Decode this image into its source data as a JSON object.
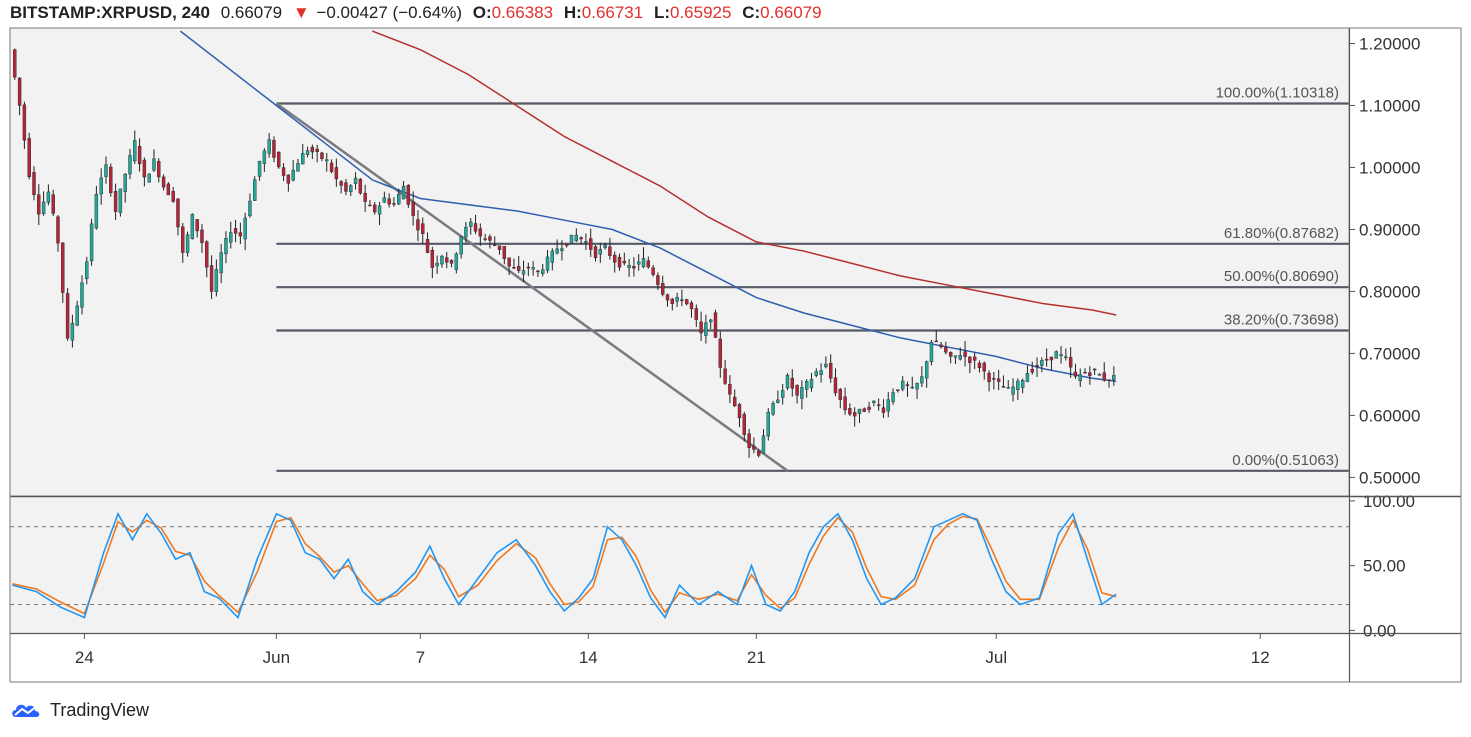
{
  "header": {
    "symbol": "BITSTAMP:XRPUSD, 240",
    "last": "0.66079",
    "down_arrow": "▼",
    "change": "−0.00427 (−0.64%)",
    "open_label": "O:",
    "open": "0.66383",
    "high_label": "H:",
    "high": "0.66731",
    "low_label": "L:",
    "low": "0.65925",
    "close_label": "C:",
    "close": "0.66079"
  },
  "brand": {
    "name": "TradingView",
    "logo_icon": "tradingview-cloud-icon"
  },
  "colors": {
    "up": "#26a69a",
    "down": "#b3263a",
    "ma_fast": "#2e5fb0",
    "ma_slow": "#b5302e",
    "fib": "#555a66",
    "stoch_k": "#2196f3",
    "stoch_d": "#f0781e",
    "grid_bg": "#f2f2f2"
  },
  "chart_data": [
    {
      "type": "candlestick",
      "price_axis": {
        "ylim": [
          0.47,
          1.225
        ],
        "ticks": [
          "1.20000",
          "1.10000",
          "1.00000",
          "0.90000",
          "0.80000",
          "0.70000",
          "0.60000",
          "0.50000"
        ]
      },
      "time_axis": {
        "ticks": [
          {
            "label": "24",
            "day": 24
          },
          {
            "label": "Jun",
            "day": 32
          },
          {
            "label": "7",
            "day": 38
          },
          {
            "label": "14",
            "day": 45
          },
          {
            "label": "21",
            "day": 52
          },
          {
            "label": "Jul",
            "day": 62
          },
          {
            "label": "12",
            "day": 73
          }
        ],
        "range_days": [
          20.9,
          76.7
        ]
      },
      "fib_levels": [
        {
          "label": "100.00%(1.10318)",
          "value": 1.10318
        },
        {
          "label": "61.80%(0.87682)",
          "value": 0.87682
        },
        {
          "label": "50.00%(0.80690)",
          "value": 0.8069
        },
        {
          "label": "38.20%(0.73698)",
          "value": 0.73698
        },
        {
          "label": "0.00%(0.51063)",
          "value": 0.51063
        }
      ],
      "fib_range_days": [
        32,
        76.7
      ],
      "trendline": {
        "from": [
          32,
          1.10318
        ],
        "to": [
          53.3,
          0.51063
        ]
      },
      "price_path": [
        [
          21.0,
          1.19
        ],
        [
          21.4,
          1.1
        ],
        [
          21.8,
          0.99
        ],
        [
          22.2,
          0.93
        ],
        [
          22.6,
          0.96
        ],
        [
          23.0,
          0.88
        ],
        [
          23.4,
          0.72
        ],
        [
          23.8,
          0.78
        ],
        [
          24.2,
          0.85
        ],
        [
          24.6,
          0.96
        ],
        [
          25.0,
          1.0
        ],
        [
          25.4,
          0.93
        ],
        [
          25.8,
          0.99
        ],
        [
          26.2,
          1.04
        ],
        [
          26.6,
          0.98
        ],
        [
          27.0,
          1.01
        ],
        [
          27.4,
          0.97
        ],
        [
          27.8,
          0.95
        ],
        [
          28.2,
          0.86
        ],
        [
          28.6,
          0.92
        ],
        [
          29.0,
          0.88
        ],
        [
          29.4,
          0.8
        ],
        [
          29.8,
          0.86
        ],
        [
          30.2,
          0.9
        ],
        [
          30.6,
          0.89
        ],
        [
          31.0,
          0.95
        ],
        [
          31.4,
          1.01
        ],
        [
          31.8,
          1.04
        ],
        [
          32.2,
          1.0
        ],
        [
          32.6,
          0.98
        ],
        [
          33.0,
          1.01
        ],
        [
          33.4,
          1.03
        ],
        [
          33.8,
          1.02
        ],
        [
          34.2,
          1.01
        ],
        [
          34.6,
          0.98
        ],
        [
          35.0,
          0.96
        ],
        [
          35.4,
          0.98
        ],
        [
          35.8,
          0.94
        ],
        [
          36.2,
          0.93
        ],
        [
          36.6,
          0.95
        ],
        [
          37.0,
          0.94
        ],
        [
          37.4,
          0.97
        ],
        [
          37.8,
          0.92
        ],
        [
          38.2,
          0.89
        ],
        [
          38.6,
          0.84
        ],
        [
          39.0,
          0.86
        ],
        [
          39.4,
          0.84
        ],
        [
          39.8,
          0.89
        ],
        [
          40.2,
          0.91
        ],
        [
          40.6,
          0.89
        ],
        [
          41.0,
          0.88
        ],
        [
          41.4,
          0.87
        ],
        [
          41.8,
          0.84
        ],
        [
          42.2,
          0.83
        ],
        [
          42.6,
          0.84
        ],
        [
          43.0,
          0.83
        ],
        [
          43.4,
          0.85
        ],
        [
          43.8,
          0.87
        ],
        [
          44.2,
          0.88
        ],
        [
          44.6,
          0.89
        ],
        [
          45.0,
          0.88
        ],
        [
          45.4,
          0.86
        ],
        [
          45.8,
          0.87
        ],
        [
          46.2,
          0.85
        ],
        [
          46.6,
          0.84
        ],
        [
          47.0,
          0.84
        ],
        [
          47.4,
          0.85
        ],
        [
          47.8,
          0.83
        ],
        [
          48.2,
          0.8
        ],
        [
          48.6,
          0.78
        ],
        [
          49.0,
          0.79
        ],
        [
          49.4,
          0.77
        ],
        [
          49.8,
          0.73
        ],
        [
          50.2,
          0.76
        ],
        [
          50.6,
          0.68
        ],
        [
          51.0,
          0.63
        ],
        [
          51.4,
          0.6
        ],
        [
          51.8,
          0.55
        ],
        [
          52.2,
          0.54
        ],
        [
          52.6,
          0.6
        ],
        [
          53.0,
          0.63
        ],
        [
          53.4,
          0.66
        ],
        [
          53.8,
          0.63
        ],
        [
          54.2,
          0.65
        ],
        [
          54.6,
          0.67
        ],
        [
          55.0,
          0.68
        ],
        [
          55.4,
          0.64
        ],
        [
          55.8,
          0.61
        ],
        [
          56.2,
          0.6
        ],
        [
          56.6,
          0.61
        ],
        [
          57.0,
          0.62
        ],
        [
          57.4,
          0.61
        ],
        [
          57.8,
          0.64
        ],
        [
          58.2,
          0.65
        ],
        [
          58.6,
          0.64
        ],
        [
          59.0,
          0.66
        ],
        [
          59.4,
          0.72
        ],
        [
          59.8,
          0.71
        ],
        [
          60.2,
          0.69
        ],
        [
          60.6,
          0.7
        ],
        [
          61.0,
          0.69
        ],
        [
          61.4,
          0.68
        ],
        [
          61.8,
          0.66
        ],
        [
          62.2,
          0.65
        ],
        [
          62.6,
          0.64
        ],
        [
          63.0,
          0.65
        ],
        [
          63.4,
          0.67
        ],
        [
          63.8,
          0.68
        ],
        [
          64.2,
          0.69
        ],
        [
          64.6,
          0.7
        ],
        [
          65.0,
          0.69
        ],
        [
          65.4,
          0.66
        ],
        [
          65.8,
          0.67
        ],
        [
          66.2,
          0.67
        ],
        [
          66.6,
          0.66
        ],
        [
          67.0,
          0.661
        ]
      ],
      "ma_fast": [
        [
          28.0,
          1.22
        ],
        [
          30.0,
          1.16
        ],
        [
          32.0,
          1.1
        ],
        [
          34.0,
          1.04
        ],
        [
          36.0,
          0.98
        ],
        [
          38.0,
          0.95
        ],
        [
          40.0,
          0.94
        ],
        [
          42.0,
          0.93
        ],
        [
          44.0,
          0.915
        ],
        [
          46.0,
          0.9
        ],
        [
          48.0,
          0.87
        ],
        [
          50.0,
          0.83
        ],
        [
          52.0,
          0.79
        ],
        [
          54.0,
          0.765
        ],
        [
          56.0,
          0.745
        ],
        [
          58.0,
          0.725
        ],
        [
          60.0,
          0.71
        ],
        [
          62.0,
          0.695
        ],
        [
          64.0,
          0.675
        ],
        [
          66.0,
          0.66
        ],
        [
          67.0,
          0.655
        ]
      ],
      "ma_slow": [
        [
          36.0,
          1.22
        ],
        [
          38.0,
          1.19
        ],
        [
          40.0,
          1.15
        ],
        [
          42.0,
          1.1
        ],
        [
          44.0,
          1.05
        ],
        [
          46.0,
          1.01
        ],
        [
          48.0,
          0.97
        ],
        [
          50.0,
          0.92
        ],
        [
          52.0,
          0.88
        ],
        [
          54.0,
          0.865
        ],
        [
          56.0,
          0.845
        ],
        [
          58.0,
          0.825
        ],
        [
          60.0,
          0.81
        ],
        [
          62.0,
          0.795
        ],
        [
          64.0,
          0.78
        ],
        [
          66.0,
          0.77
        ],
        [
          67.0,
          0.762
        ]
      ]
    },
    {
      "type": "line",
      "name": "stochastic",
      "ylim": [
        -2,
        103
      ],
      "ticks": [
        "100.00",
        "50.00",
        "0.00"
      ],
      "bands": [
        80,
        20
      ],
      "k": [
        [
          21.0,
          35
        ],
        [
          22.0,
          30
        ],
        [
          23.0,
          18
        ],
        [
          24.0,
          10
        ],
        [
          24.8,
          60
        ],
        [
          25.4,
          90
        ],
        [
          26.0,
          70
        ],
        [
          26.6,
          90
        ],
        [
          27.2,
          75
        ],
        [
          27.8,
          55
        ],
        [
          28.4,
          60
        ],
        [
          29.0,
          30
        ],
        [
          29.6,
          25
        ],
        [
          30.4,
          10
        ],
        [
          31.2,
          55
        ],
        [
          32.0,
          90
        ],
        [
          32.6,
          85
        ],
        [
          33.2,
          60
        ],
        [
          33.8,
          55
        ],
        [
          34.4,
          40
        ],
        [
          35.0,
          55
        ],
        [
          35.6,
          30
        ],
        [
          36.2,
          20
        ],
        [
          37.0,
          30
        ],
        [
          37.8,
          45
        ],
        [
          38.4,
          65
        ],
        [
          39.0,
          40
        ],
        [
          39.6,
          20
        ],
        [
          40.4,
          40
        ],
        [
          41.2,
          60
        ],
        [
          42.0,
          70
        ],
        [
          42.8,
          50
        ],
        [
          43.4,
          30
        ],
        [
          44.0,
          15
        ],
        [
          44.6,
          25
        ],
        [
          45.2,
          40
        ],
        [
          45.8,
          80
        ],
        [
          46.4,
          70
        ],
        [
          47.0,
          50
        ],
        [
          47.6,
          25
        ],
        [
          48.2,
          10
        ],
        [
          48.8,
          35
        ],
        [
          49.6,
          20
        ],
        [
          50.4,
          30
        ],
        [
          51.2,
          20
        ],
        [
          51.8,
          50
        ],
        [
          52.4,
          20
        ],
        [
          53.0,
          15
        ],
        [
          53.6,
          30
        ],
        [
          54.2,
          60
        ],
        [
          54.8,
          80
        ],
        [
          55.4,
          90
        ],
        [
          56.0,
          70
        ],
        [
          56.6,
          40
        ],
        [
          57.2,
          20
        ],
        [
          57.8,
          25
        ],
        [
          58.6,
          40
        ],
        [
          59.4,
          80
        ],
        [
          60.0,
          85
        ],
        [
          60.6,
          90
        ],
        [
          61.2,
          85
        ],
        [
          61.8,
          55
        ],
        [
          62.4,
          30
        ],
        [
          63.0,
          20
        ],
        [
          63.8,
          25
        ],
        [
          64.6,
          75
        ],
        [
          65.2,
          90
        ],
        [
          65.8,
          55
        ],
        [
          66.4,
          20
        ],
        [
          67.0,
          28
        ]
      ],
      "d": [
        [
          21.0,
          36
        ],
        [
          22.0,
          32
        ],
        [
          23.0,
          22
        ],
        [
          24.0,
          13
        ],
        [
          24.8,
          52
        ],
        [
          25.4,
          84
        ],
        [
          26.0,
          76
        ],
        [
          26.6,
          85
        ],
        [
          27.2,
          79
        ],
        [
          27.8,
          61
        ],
        [
          28.4,
          58
        ],
        [
          29.0,
          38
        ],
        [
          29.6,
          27
        ],
        [
          30.4,
          14
        ],
        [
          31.2,
          45
        ],
        [
          32.0,
          84
        ],
        [
          32.6,
          87
        ],
        [
          33.2,
          67
        ],
        [
          33.8,
          57
        ],
        [
          34.4,
          45
        ],
        [
          35.0,
          50
        ],
        [
          35.6,
          36
        ],
        [
          36.2,
          23
        ],
        [
          37.0,
          27
        ],
        [
          37.8,
          40
        ],
        [
          38.4,
          58
        ],
        [
          39.0,
          47
        ],
        [
          39.6,
          26
        ],
        [
          40.4,
          35
        ],
        [
          41.2,
          54
        ],
        [
          42.0,
          67
        ],
        [
          42.8,
          56
        ],
        [
          43.4,
          36
        ],
        [
          44.0,
          20
        ],
        [
          44.6,
          22
        ],
        [
          45.2,
          34
        ],
        [
          45.8,
          70
        ],
        [
          46.4,
          72
        ],
        [
          47.0,
          57
        ],
        [
          47.6,
          31
        ],
        [
          48.2,
          14
        ],
        [
          48.8,
          29
        ],
        [
          49.6,
          24
        ],
        [
          50.4,
          28
        ],
        [
          51.2,
          23
        ],
        [
          51.8,
          43
        ],
        [
          52.4,
          27
        ],
        [
          53.0,
          17
        ],
        [
          53.6,
          25
        ],
        [
          54.2,
          51
        ],
        [
          54.8,
          73
        ],
        [
          55.4,
          87
        ],
        [
          56.0,
          76
        ],
        [
          56.6,
          48
        ],
        [
          57.2,
          26
        ],
        [
          57.8,
          24
        ],
        [
          58.6,
          35
        ],
        [
          59.4,
          70
        ],
        [
          60.0,
          82
        ],
        [
          60.6,
          88
        ],
        [
          61.2,
          86
        ],
        [
          61.8,
          63
        ],
        [
          62.4,
          38
        ],
        [
          63.0,
          24
        ],
        [
          63.8,
          24
        ],
        [
          64.6,
          64
        ],
        [
          65.2,
          85
        ],
        [
          65.8,
          63
        ],
        [
          66.4,
          29
        ],
        [
          67.0,
          26
        ]
      ]
    }
  ]
}
